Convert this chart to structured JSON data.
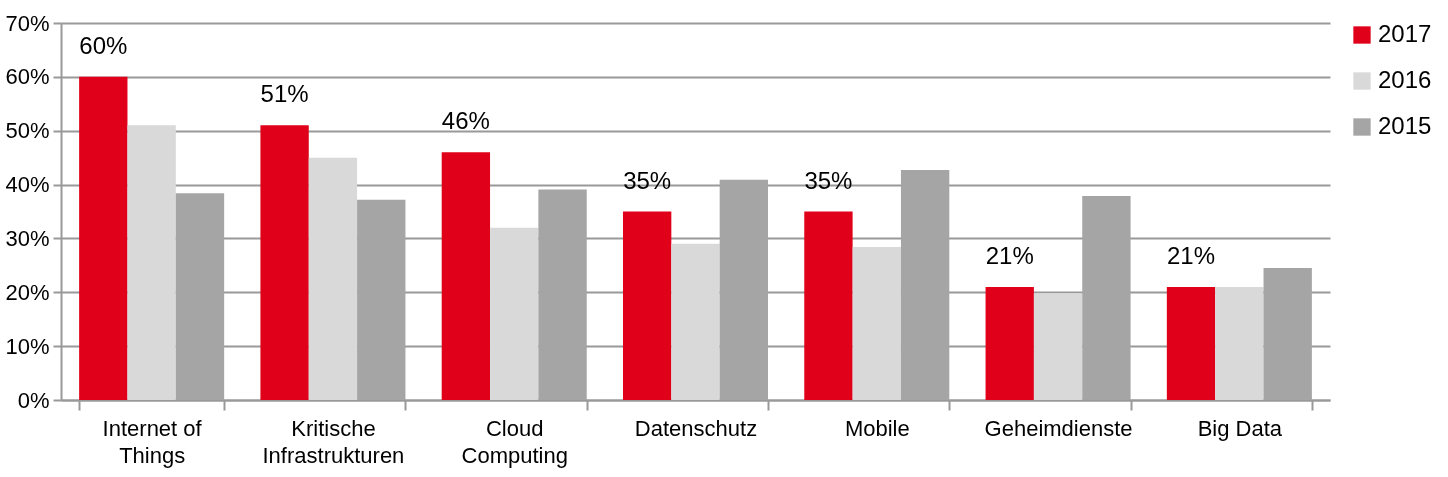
{
  "chart_data": {
    "type": "bar",
    "categories": [
      "Internet of Things",
      "Kritische Infrastrukturen",
      "Cloud Computing",
      "Datenschutz",
      "Mobile",
      "Geheimdienste",
      "Big Data"
    ],
    "series": [
      {
        "name": "2017",
        "color": "#e0001a",
        "values": [
          60,
          51,
          46,
          35,
          35,
          21,
          21
        ],
        "value_labels": [
          "60%",
          "51%",
          "46%",
          "35%",
          "35%",
          "21%",
          "21%"
        ]
      },
      {
        "name": "2016",
        "color": "#d9d9d9",
        "values": [
          51,
          45,
          32,
          29,
          28.4,
          19.8,
          21
        ]
      },
      {
        "name": "2015",
        "color": "#a5a5a5",
        "values": [
          38.4,
          37.2,
          39.1,
          40.9,
          42.7,
          37.9,
          24.5
        ]
      }
    ],
    "ylim": [
      0,
      70
    ],
    "yticks": [
      {
        "value": 0,
        "label": "0%"
      },
      {
        "value": 10,
        "label": "10%"
      },
      {
        "value": 20,
        "label": "20%"
      },
      {
        "value": 30,
        "label": "30%"
      },
      {
        "value": 40,
        "label": "40%"
      },
      {
        "value": 50,
        "label": "50%"
      },
      {
        "value": 60,
        "label": "60%"
      },
      {
        "value": 70,
        "label": "70%"
      }
    ],
    "grid": "y",
    "legend": "right"
  }
}
